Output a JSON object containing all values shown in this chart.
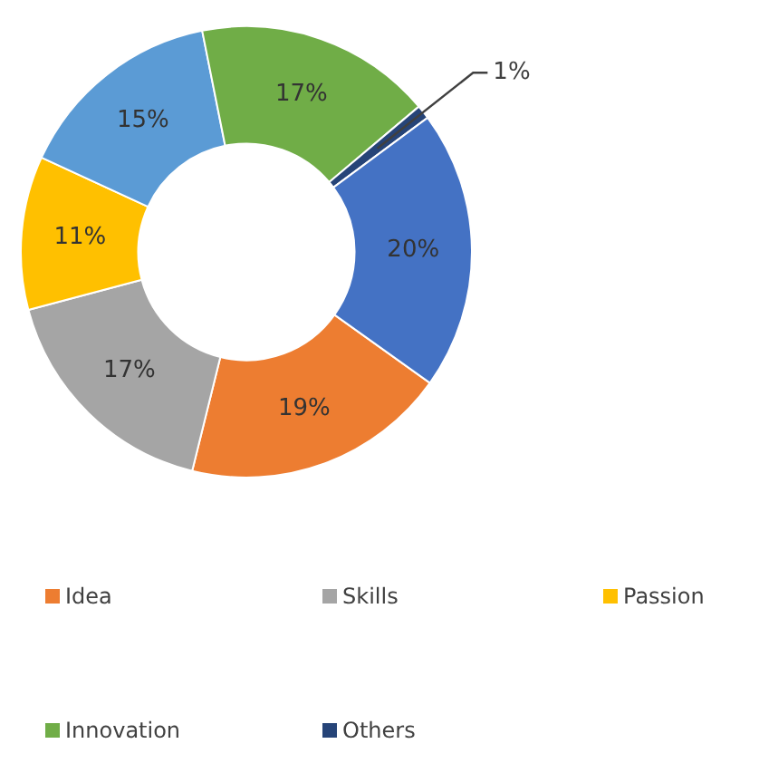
{
  "chart_data": {
    "type": "donut",
    "categories": [
      "Idea",
      "Skills",
      "Passion",
      null,
      "Innovation",
      "Others",
      null
    ],
    "values": [
      19,
      17,
      11,
      15,
      17,
      1,
      20
    ],
    "value_labels": [
      "19%",
      "17%",
      "11%",
      "15%",
      "17%",
      "1%",
      "20%"
    ],
    "colors": [
      "#ed7d31",
      "#a5a5a5",
      "#ffc000",
      "#5b9bd5",
      "#70ad47",
      "#264478",
      "#4472c4"
    ],
    "legend": "bottom"
  }
}
